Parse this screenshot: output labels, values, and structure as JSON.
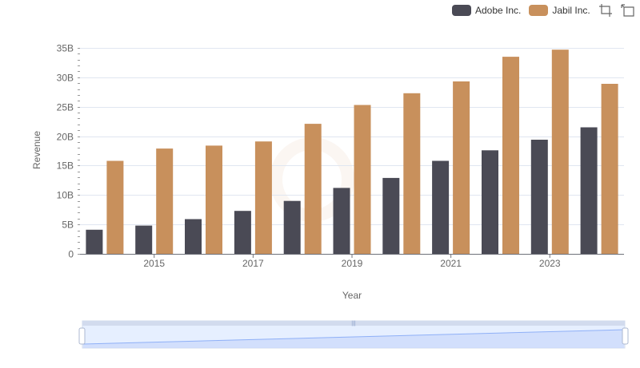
{
  "chart_data": {
    "type": "bar",
    "title": "",
    "xlabel": "Year",
    "ylabel": "Revenue",
    "categories": [
      "2014",
      "2015",
      "2016",
      "2017",
      "2018",
      "2019",
      "2020",
      "2021",
      "2022",
      "2023",
      "2024"
    ],
    "x_tick_labels": [
      "2015",
      "2017",
      "2019",
      "2021",
      "2023"
    ],
    "y_tick_labels": [
      "0",
      "5B",
      "10B",
      "15B",
      "20B",
      "25B",
      "30B",
      "35B"
    ],
    "ylim": [
      0,
      35
    ],
    "y_unit": "B",
    "series": [
      {
        "name": "Adobe Inc.",
        "color": "#4a4a55",
        "values": [
          4.1,
          4.8,
          5.9,
          7.3,
          9.0,
          11.2,
          12.9,
          15.8,
          17.6,
          19.4,
          21.5
        ]
      },
      {
        "name": "Jabil Inc.",
        "color": "#c8905c",
        "values": [
          15.8,
          17.9,
          18.4,
          19.1,
          22.1,
          25.3,
          27.3,
          29.3,
          33.5,
          34.7,
          28.9
        ]
      }
    ],
    "legend_position": "top-right"
  },
  "toolbar": {
    "zoom_icon": "zoom-icon",
    "restore_icon": "restore-icon"
  }
}
